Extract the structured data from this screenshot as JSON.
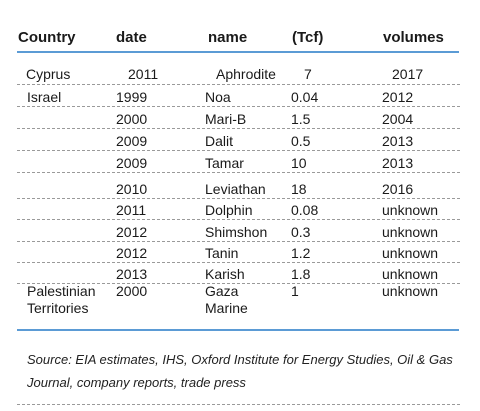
{
  "table": {
    "headers": {
      "country": "Country",
      "date": "date",
      "name": "name",
      "tcf": "(Tcf)",
      "volumes": "volumes"
    },
    "rows": [
      {
        "country": "Cyprus",
        "date": "2011",
        "name": "Aphrodite",
        "tcf": "7",
        "volumes": "2017"
      },
      {
        "country": "Israel",
        "date": "1999",
        "name": "Noa",
        "tcf": "0.04",
        "volumes": "2012"
      },
      {
        "country": "",
        "date": "2000",
        "name": "Mari-B",
        "tcf": "1.5",
        "volumes": "2004"
      },
      {
        "country": "",
        "date": "2009",
        "name": "Dalit",
        "tcf": "0.5",
        "volumes": "2013"
      },
      {
        "country": "",
        "date": "2009",
        "name": "Tamar",
        "tcf": "10",
        "volumes": "2013"
      },
      {
        "country": "",
        "date": "2010",
        "name": "Leviathan",
        "tcf": "18",
        "volumes": "2016"
      },
      {
        "country": "",
        "date": "2011",
        "name": "Dolphin",
        "tcf": "0.08",
        "volumes": "unknown"
      },
      {
        "country": "",
        "date": "2012",
        "name": "Shimshon",
        "tcf": "0.3",
        "volumes": "unknown"
      },
      {
        "country": "",
        "date": "2012",
        "name": "Tanin",
        "tcf": "1.2",
        "volumes": "unknown"
      },
      {
        "country": "",
        "date": "2013",
        "name": "Karish",
        "tcf": "1.8",
        "volumes": "unknown"
      },
      {
        "country": "Palestinian Territories",
        "date": "2000",
        "name": "Gaza Marine",
        "tcf": "1",
        "volumes": "unknown"
      }
    ]
  },
  "source": "Source: EIA estimates, IHS, Oxford Institute for Energy Studies, Oil & Gas Journal, company reports, trade press",
  "colors": {
    "accent_rule": "#5b9bd5",
    "dashed_rule": "#9a9a9a"
  }
}
